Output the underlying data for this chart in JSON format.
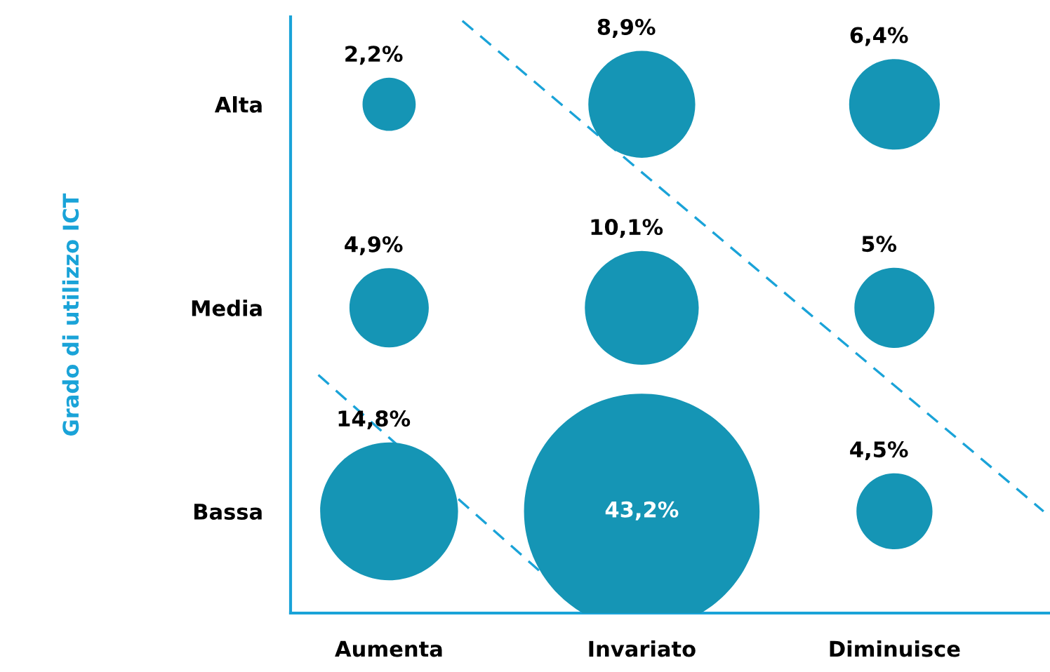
{
  "chart_data": {
    "type": "other",
    "ylabel": "Grado di utilizzo ICT",
    "categories": [
      "Aumenta",
      "Invariato",
      "Diminuisce"
    ],
    "series": [
      {
        "name": "Alta",
        "values": [
          2.2,
          8.9,
          6.4
        ],
        "value_labels": [
          "2,2%",
          "8,9%",
          "6,4%"
        ]
      },
      {
        "name": "Media",
        "values": [
          4.9,
          10.1,
          5
        ],
        "value_labels": [
          "4,9%",
          "10,1%",
          "5%"
        ]
      },
      {
        "name": "Bassa",
        "values": [
          14.8,
          43.2,
          4.5
        ],
        "value_labels": [
          "14,8%",
          "43,2%",
          "4,5%"
        ]
      }
    ]
  }
}
